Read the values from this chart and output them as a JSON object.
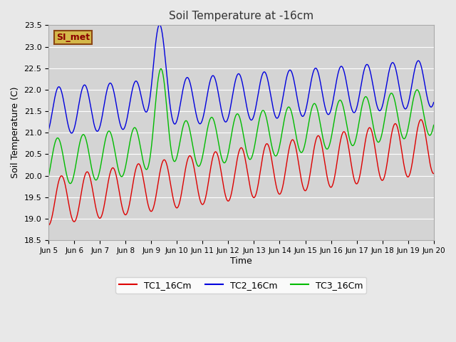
{
  "title": "Soil Temperature at -16cm",
  "xlabel": "Time",
  "ylabel": "Soil Temperature (C)",
  "ylim": [
    18.5,
    23.5
  ],
  "xlim": [
    0,
    360
  ],
  "background_color": "#e8e8e8",
  "plot_bg_color": "#d4d4d4",
  "grid_color": "#ffffff",
  "annotation_text": "SI_met",
  "annotation_bg": "#d4b84a",
  "annotation_border": "#8B4513",
  "legend_labels": [
    "TC1_16Cm",
    "TC2_16Cm",
    "TC3_16Cm"
  ],
  "line_colors": [
    "#dd0000",
    "#0000dd",
    "#00bb00"
  ],
  "x_tick_labels": [
    "Jun 5",
    "Jun 6",
    "Jun 7",
    "Jun 8",
    "Jun 9",
    "Jun 10",
    "Jun 11",
    "Jun 12",
    "Jun 13",
    "Jun 14",
    "Jun 15",
    "Jun 16",
    "Jun 17",
    "Jun 18",
    "Jun 19",
    "Jun 20"
  ],
  "x_tick_positions": [
    0,
    24,
    48,
    72,
    96,
    120,
    144,
    168,
    192,
    216,
    240,
    264,
    288,
    312,
    336,
    360
  ]
}
